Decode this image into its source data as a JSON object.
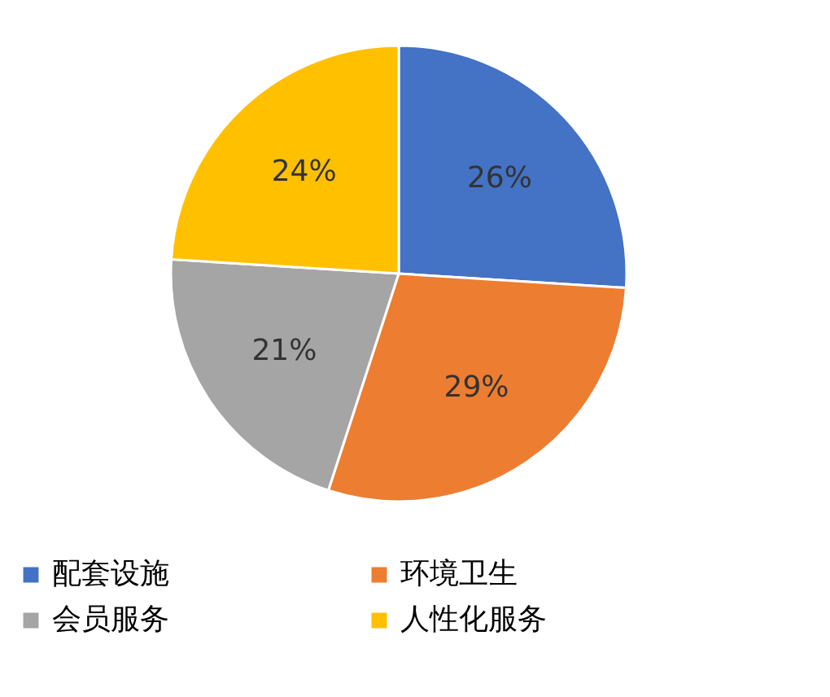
{
  "chart_data": {
    "type": "pie",
    "categories": [
      "配套设施",
      "环境卫生",
      "会员服务",
      "人性化服务"
    ],
    "values": [
      26,
      29,
      21,
      24
    ],
    "colors": [
      "#4472c4",
      "#ed7d31",
      "#a5a5a5",
      "#ffc000"
    ],
    "value_labels": [
      "26%",
      "29%",
      "21%",
      "24%"
    ],
    "legend": "bottom"
  }
}
